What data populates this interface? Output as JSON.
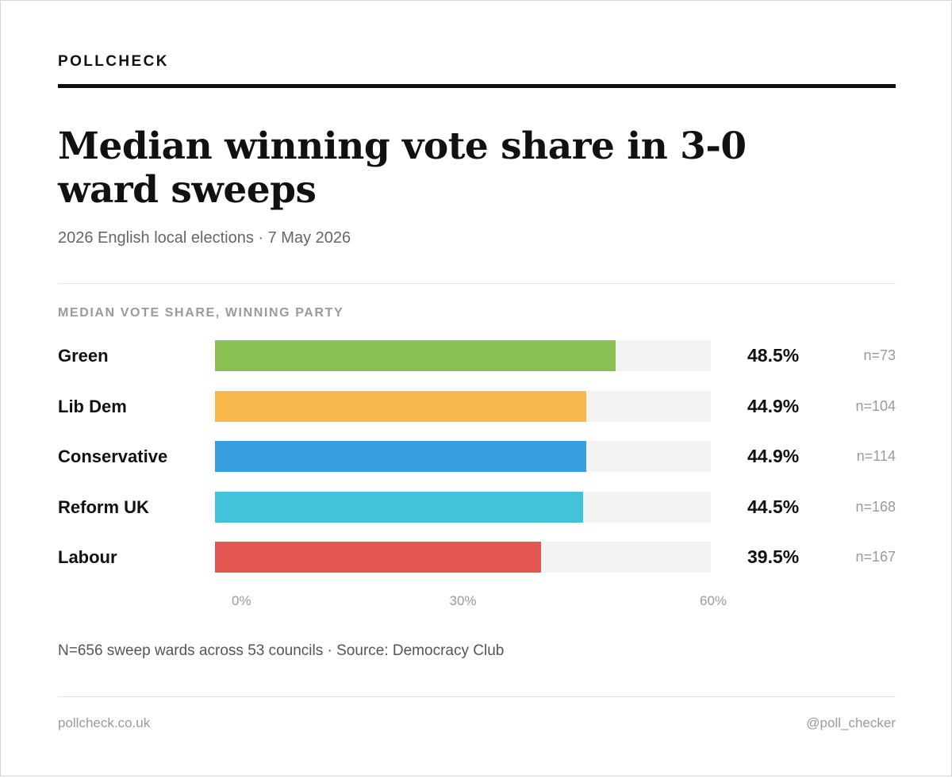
{
  "brand": "POLLCHECK",
  "subtitle": "2026 English local elections · 7 May 2026",
  "section_label": "MEDIAN VOTE SHARE, WINNING PARTY",
  "note": "N=656 sweep wards across 53 councils · Source: Democracy Club",
  "footer": {
    "site": "pollcheck.co.uk",
    "handle": "@poll_checker"
  },
  "chart_data": {
    "type": "bar",
    "orientation": "horizontal",
    "title": "Median winning vote share in 3-0 ward sweeps",
    "xlim": [
      0,
      60
    ],
    "ticks": [
      "0%",
      "30%",
      "60%"
    ],
    "tick_values": [
      0,
      30,
      60
    ],
    "grid": false,
    "categories": [
      "Green",
      "Lib Dem",
      "Conservative",
      "Reform UK",
      "Labour"
    ],
    "values": [
      48.5,
      44.9,
      44.9,
      44.5,
      39.5
    ],
    "value_labels": [
      "48.5%",
      "44.9%",
      "44.9%",
      "44.5%",
      "39.5%"
    ],
    "counts": [
      "n=73",
      "n=104",
      "n=114",
      "n=168",
      "n=167"
    ],
    "colors": [
      "#8bc152",
      "#f9b84b",
      "#379fe0",
      "#43c3da",
      "#e25551"
    ]
  }
}
